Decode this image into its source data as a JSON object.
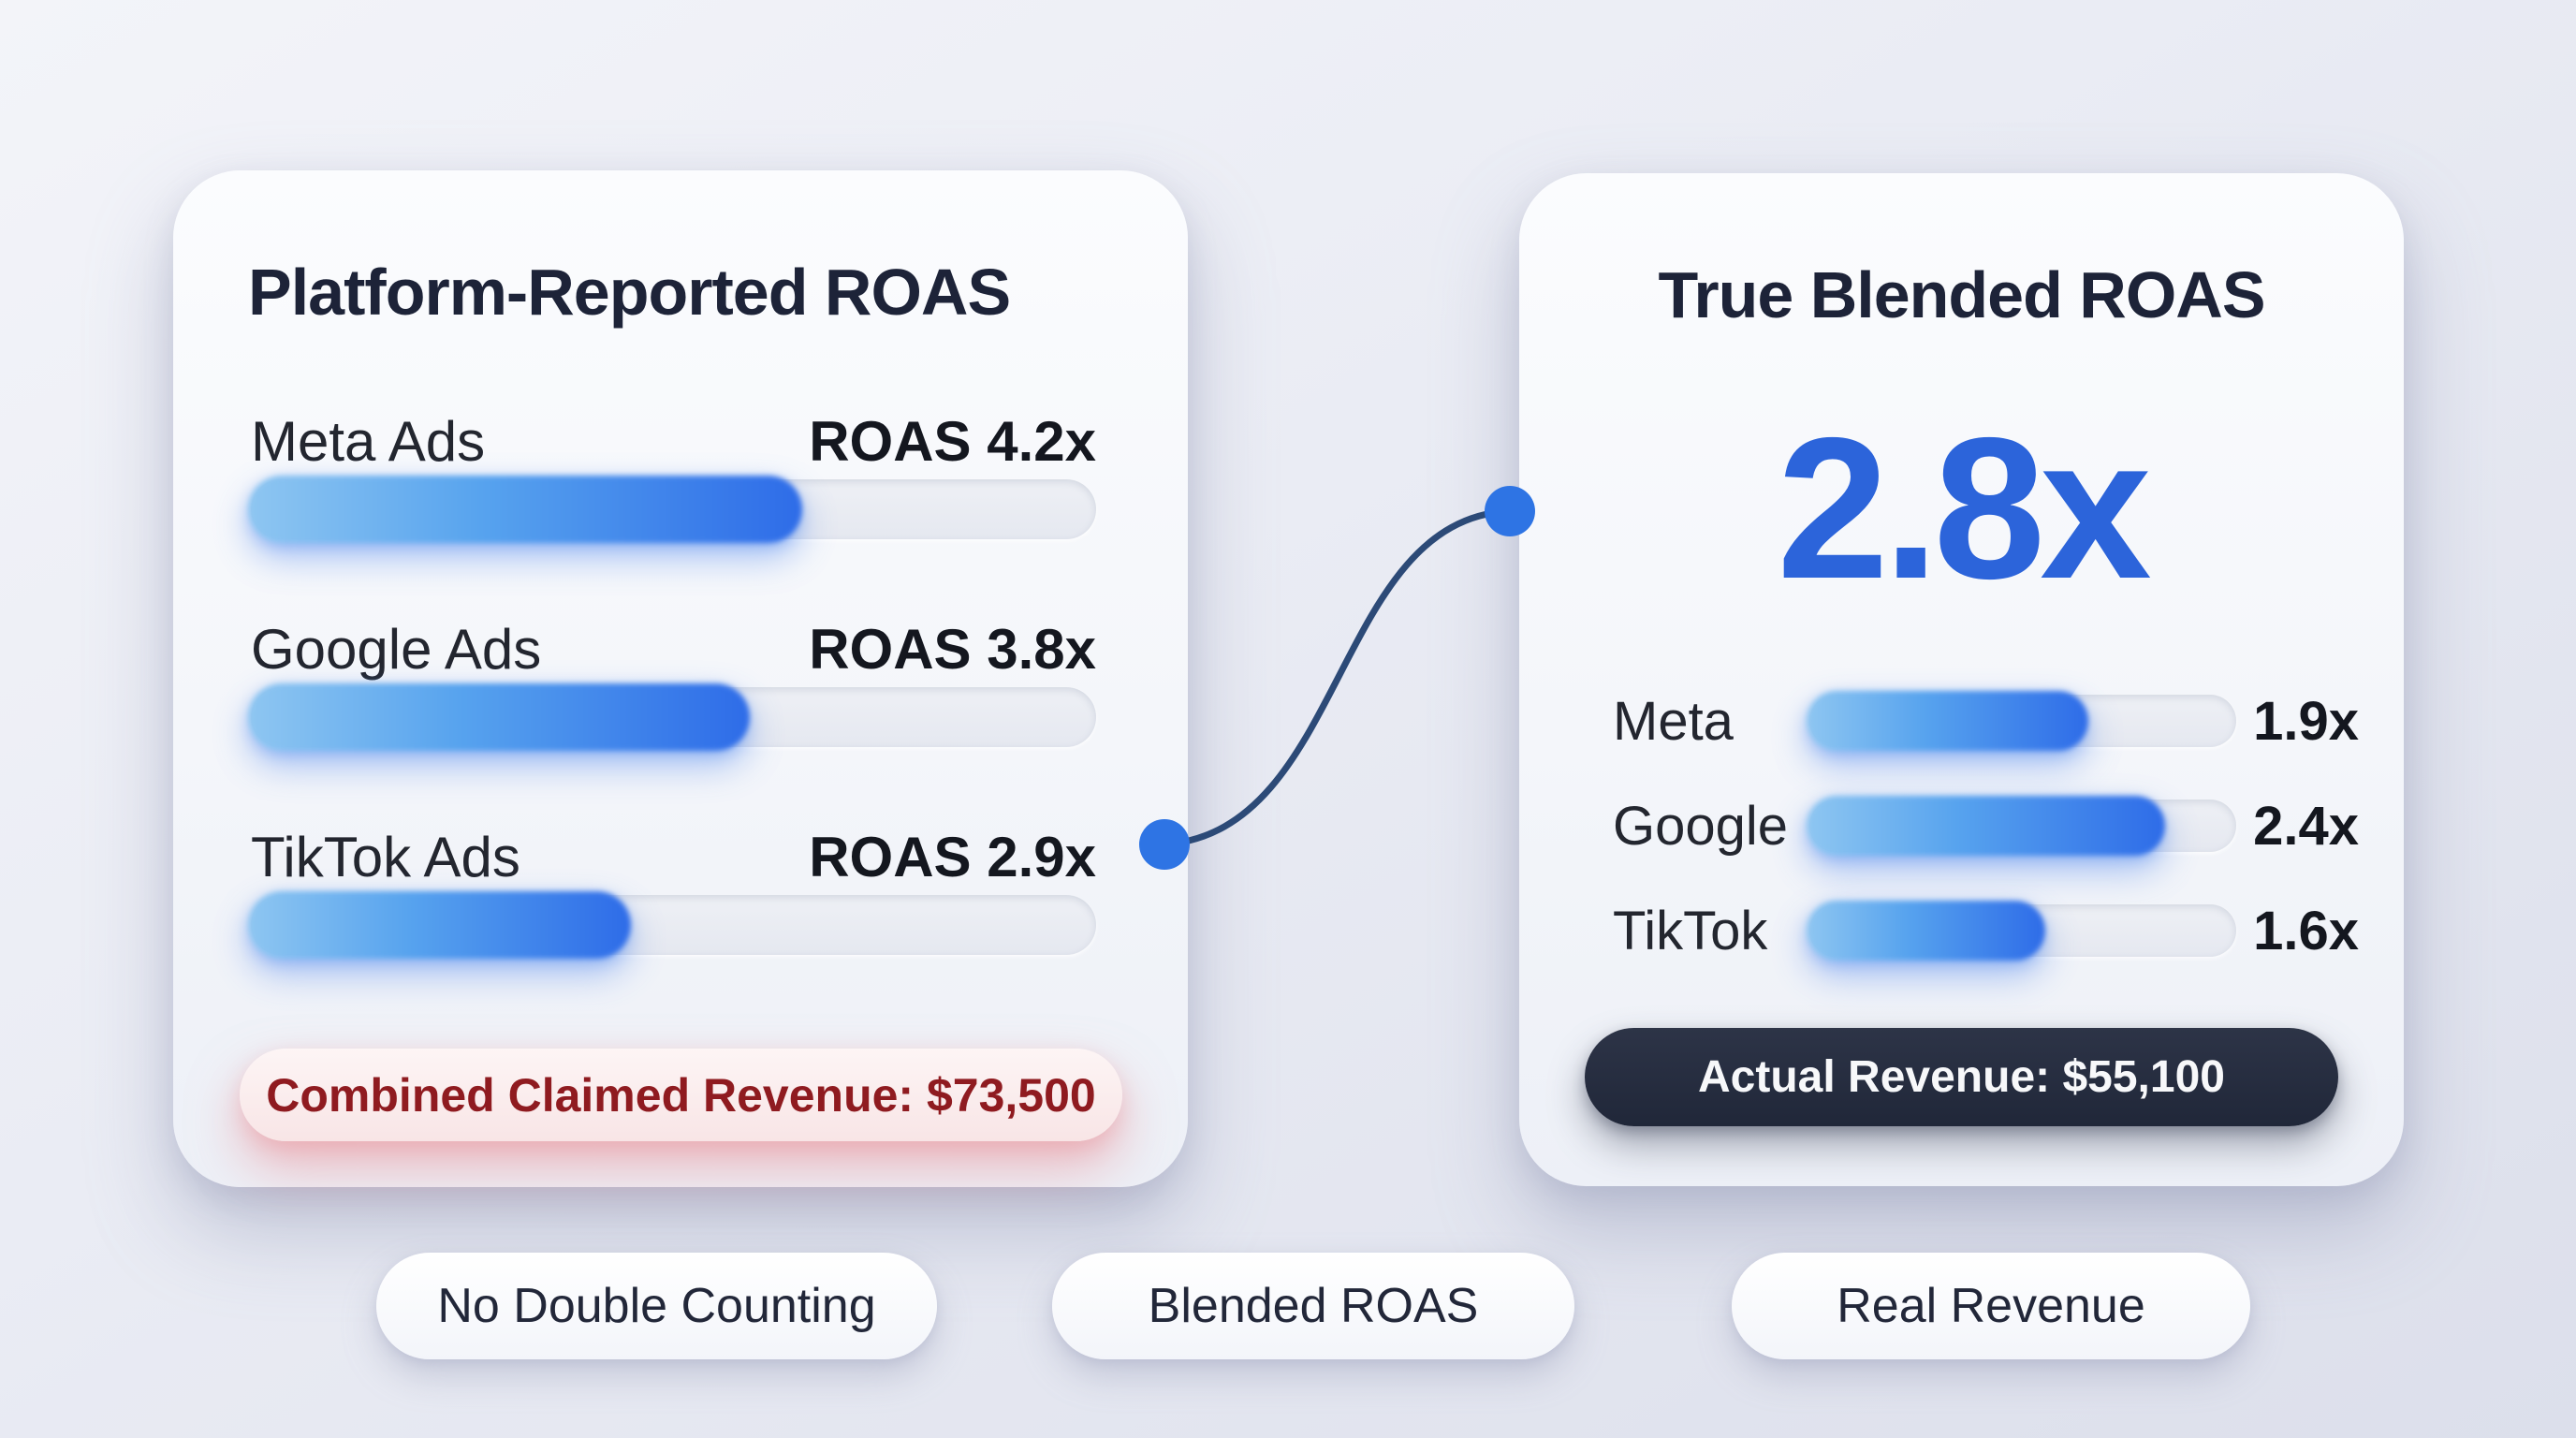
{
  "left_card": {
    "title": "Platform-Reported ROAS",
    "rows": [
      {
        "label": "Meta Ads",
        "value": "ROAS 4.2x",
        "fill_pct": 65.6
      },
      {
        "label": "Google Ads",
        "value": "ROAS 3.8x",
        "fill_pct": 59.4
      },
      {
        "label": "TikTok Ads",
        "value": "ROAS 2.9x",
        "fill_pct": 45.3
      }
    ],
    "footer_note": "Combined Claimed Revenue: $73,500"
  },
  "right_card": {
    "title": "True Blended ROAS",
    "headline_value": "2.8x",
    "rows": [
      {
        "label": "Meta",
        "value": "1.9x",
        "fill_pct": 66
      },
      {
        "label": "Google",
        "value": "2.4x",
        "fill_pct": 84
      },
      {
        "label": "TikTok",
        "value": "1.6x",
        "fill_pct": 56
      }
    ],
    "footer_note": "Actual Revenue: $55,100"
  },
  "badges": [
    {
      "label": "No Double Counting"
    },
    {
      "label": "Blended ROAS"
    },
    {
      "label": "Real Revenue"
    }
  ],
  "colors": {
    "background_lavender": "#e9ebf3",
    "card_white": "#f7f8fb",
    "title_navy": "#1d2338",
    "bar_fill_start": "#8ec6f1",
    "bar_fill_end": "#2e6ce8",
    "headline_blue": "#2c64da",
    "warning_red_text": "#8f1b20",
    "warning_pill_bg": "#f9e6e7",
    "dark_pill_bg": "#232a3d",
    "connector_line": "#2c4a77",
    "connector_dot": "#2e74e4"
  },
  "chart_data": [
    {
      "type": "bar",
      "orientation": "horizontal",
      "title": "Platform-Reported ROAS",
      "categories": [
        "Meta Ads",
        "Google Ads",
        "TikTok Ads"
      ],
      "values": [
        4.2,
        3.8,
        2.9
      ],
      "value_suffix": "x",
      "value_label_format": "ROAS {v}x",
      "xlim": [
        0,
        6.4
      ],
      "annotation": "Combined Claimed Revenue: $73,500"
    },
    {
      "type": "bar",
      "orientation": "horizontal",
      "title": "True Blended ROAS",
      "headline": "2.8x",
      "categories": [
        "Meta",
        "Google",
        "TikTok"
      ],
      "values": [
        1.9,
        2.4,
        1.6
      ],
      "value_suffix": "x",
      "xlim": [
        0,
        2.9
      ],
      "annotation": "Actual Revenue: $55,100"
    }
  ]
}
